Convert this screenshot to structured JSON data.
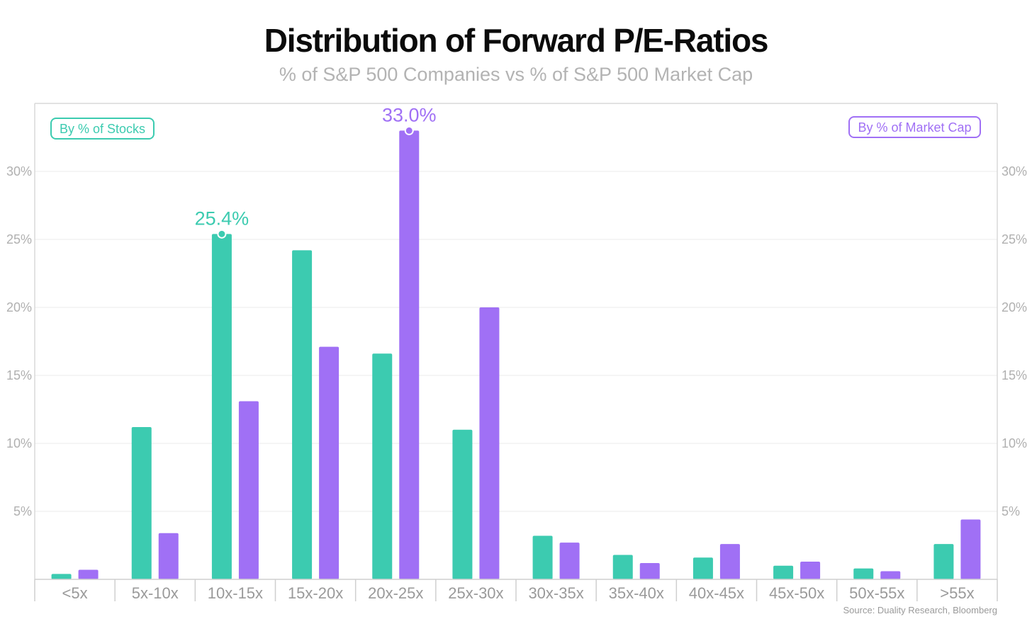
{
  "chart_data": {
    "type": "bar",
    "title": "Distribution of Forward P/E-Ratios",
    "subtitle": "% of S&P 500 Companies vs % of S&P 500 Market Cap",
    "categories": [
      "<5x",
      "5x-10x",
      "10x-15x",
      "15x-20x",
      "20x-25x",
      "25x-30x",
      "30x-35x",
      "35x-40x",
      "40x-45x",
      "45x-50x",
      "50x-55x",
      ">55x"
    ],
    "series": [
      {
        "name": "By % of Stocks",
        "color": "#3ccbb0",
        "values": [
          0.4,
          11.2,
          25.4,
          24.2,
          16.6,
          11.0,
          3.2,
          1.8,
          1.6,
          1.0,
          0.8,
          2.6
        ]
      },
      {
        "name": "By % of Market Cap",
        "color": "#a070f5",
        "values": [
          0.7,
          3.4,
          13.1,
          17.1,
          33.0,
          20.0,
          2.7,
          1.2,
          2.6,
          1.3,
          0.6,
          4.4
        ]
      }
    ],
    "yticks": [
      "5%",
      "10%",
      "15%",
      "20%",
      "25%",
      "30%"
    ],
    "ylim": [
      0,
      35
    ],
    "grid": true,
    "annotations": [
      {
        "series": 0,
        "category": "10x-15x",
        "label": "25.4%"
      },
      {
        "series": 1,
        "category": "20x-25x",
        "label": "33.0%"
      }
    ],
    "legend": {
      "left_label": "By % of Stocks",
      "right_label": "By % of Market Cap"
    },
    "source": "Source: Duality Research, Bloomberg"
  }
}
